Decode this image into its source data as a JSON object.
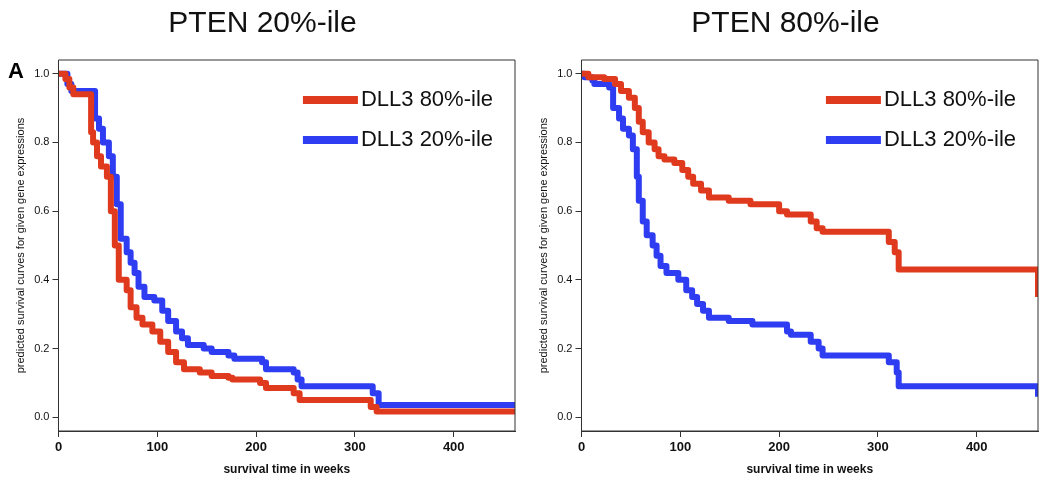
{
  "chart_data": [
    {
      "type": "step",
      "title": "PTEN 20%-ile",
      "xlabel": "survival time in weeks",
      "ylabel": "predicted survival curves for given gene expressions",
      "annotations": [
        "A"
      ],
      "xlim": [
        0,
        462
      ],
      "ylim": [
        -0.04,
        1.04
      ],
      "xticks": [
        0,
        100,
        200,
        300,
        400
      ],
      "yticks": [
        {
          "value": 0,
          "label": "0.0"
        },
        {
          "value": 0.2,
          "label": "0.2"
        },
        {
          "value": 0.4,
          "label": "0.4"
        },
        {
          "value": 0.6,
          "label": "0.6"
        },
        {
          "value": 0.8,
          "label": "0.8"
        },
        {
          "value": 1,
          "label": "1.0"
        }
      ],
      "grid": false,
      "legend": "top right",
      "marker": "none",
      "line_style": "solid",
      "series": [
        {
          "name": "DLL3 80%-ile",
          "color": "#e03a1e",
          "x": [
            0,
            7,
            11,
            15,
            33,
            35,
            39,
            43,
            49,
            53,
            57,
            61,
            69,
            73,
            79,
            85,
            95,
            103,
            111,
            119,
            127,
            143,
            155,
            172,
            176,
            204,
            210,
            234,
            238,
            244,
            310,
            316,
            322,
            462,
            462
          ],
          "values": [
            1,
            0.985,
            0.96,
            0.94,
            0.83,
            0.8,
            0.76,
            0.73,
            0.7,
            0.6,
            0.5,
            0.4,
            0.37,
            0.32,
            0.29,
            0.27,
            0.25,
            0.22,
            0.19,
            0.16,
            0.14,
            0.13,
            0.12,
            0.115,
            0.11,
            0.1,
            0.085,
            0.085,
            0.07,
            0.05,
            0.05,
            0.03,
            0.017,
            0.017,
            0.01
          ]
        },
        {
          "name": "DLL3 20%-ile",
          "color": "#2e3cf2",
          "x": [
            0,
            9,
            13,
            37,
            41,
            45,
            51,
            55,
            59,
            63,
            69,
            73,
            77,
            81,
            87,
            97,
            105,
            111,
            119,
            125,
            131,
            147,
            155,
            172,
            178,
            206,
            210,
            238,
            242,
            246,
            314,
            318,
            324,
            462
          ],
          "values": [
            1,
            0.97,
            0.95,
            0.87,
            0.84,
            0.8,
            0.76,
            0.7,
            0.62,
            0.52,
            0.48,
            0.45,
            0.42,
            0.38,
            0.35,
            0.34,
            0.31,
            0.28,
            0.25,
            0.23,
            0.21,
            0.2,
            0.19,
            0.18,
            0.17,
            0.16,
            0.14,
            0.13,
            0.11,
            0.09,
            0.09,
            0.07,
            0.036,
            0.036
          ]
        }
      ]
    },
    {
      "type": "step",
      "title": "PTEN 80%-ile",
      "xlabel": "survival time in weeks",
      "ylabel": "predicted survival curves for given gene expressions",
      "xlim": [
        0,
        462
      ],
      "ylim": [
        -0.04,
        1.04
      ],
      "xticks": [
        0,
        100,
        200,
        300,
        400
      ],
      "yticks": [
        {
          "value": 0,
          "label": "0.0"
        },
        {
          "value": 0.2,
          "label": "0.2"
        },
        {
          "value": 0.4,
          "label": "0.4"
        },
        {
          "value": 0.6,
          "label": "0.6"
        },
        {
          "value": 0.8,
          "label": "0.8"
        },
        {
          "value": 1,
          "label": "1.0"
        }
      ],
      "grid": false,
      "legend": "top right",
      "marker": "none",
      "line_style": "solid",
      "series": [
        {
          "name": "DLL3 80%-ile",
          "color": "#e03a1e",
          "x": [
            0,
            7,
            23,
            34,
            40,
            48,
            54,
            58,
            62,
            68,
            74,
            78,
            84,
            94,
            102,
            108,
            113,
            121,
            129,
            149,
            171,
            200,
            208,
            232,
            238,
            244,
            309,
            311,
            317,
            321,
            462,
            462
          ],
          "values": [
            1,
            0.99,
            0.985,
            0.97,
            0.95,
            0.93,
            0.9,
            0.86,
            0.83,
            0.8,
            0.78,
            0.76,
            0.75,
            0.74,
            0.72,
            0.7,
            0.68,
            0.66,
            0.64,
            0.63,
            0.62,
            0.6,
            0.59,
            0.57,
            0.55,
            0.54,
            0.54,
            0.51,
            0.48,
            0.43,
            0.43,
            0.35
          ]
        },
        {
          "name": "DLL3 20%-ile",
          "color": "#2e3cf2",
          "x": [
            0,
            3,
            11,
            13,
            28,
            32,
            38,
            42,
            48,
            52,
            56,
            58,
            62,
            66,
            72,
            76,
            80,
            86,
            98,
            106,
            112,
            117,
            123,
            129,
            149,
            173,
            180,
            208,
            212,
            232,
            240,
            244,
            309,
            311,
            319,
            321,
            462,
            462
          ],
          "values": [
            1,
            0.99,
            0.98,
            0.97,
            0.96,
            0.9,
            0.87,
            0.84,
            0.82,
            0.78,
            0.7,
            0.63,
            0.57,
            0.53,
            0.5,
            0.47,
            0.44,
            0.42,
            0.4,
            0.37,
            0.35,
            0.33,
            0.31,
            0.29,
            0.28,
            0.27,
            0.27,
            0.25,
            0.24,
            0.22,
            0.2,
            0.18,
            0.18,
            0.16,
            0.13,
            0.09,
            0.09,
            0.06
          ]
        }
      ]
    }
  ]
}
